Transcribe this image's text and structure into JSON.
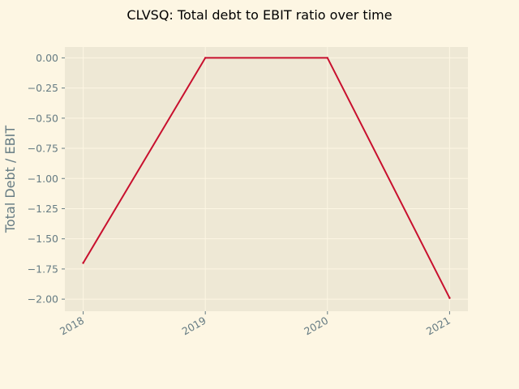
{
  "chart_data": {
    "type": "line",
    "title": "CLVSQ: Total debt to EBIT ratio over time",
    "xlabel": "",
    "ylabel": "Total Debt / EBIT",
    "x": [
      "2018",
      "2019",
      "2020",
      "2021"
    ],
    "xlim": [
      2017.85,
      2021.15
    ],
    "series": [
      {
        "values": [
          -1.7,
          0.0,
          0.0,
          -1.99
        ],
        "color": "#c8102e"
      }
    ],
    "ylim": [
      -2.1,
      0.09
    ],
    "yticks": [
      0.0,
      -0.25,
      -0.5,
      -0.75,
      -1.0,
      -1.25,
      -1.5,
      -1.75,
      -2.0
    ],
    "ytick_labels": [
      "0.00",
      "−0.25",
      "−0.50",
      "−0.75",
      "−1.00",
      "−1.25",
      "−1.50",
      "−1.75",
      "−2.00"
    ],
    "xtick_labels": [
      "2018",
      "2019",
      "2020",
      "2021"
    ],
    "grid": true,
    "colors": {
      "figure_background": "#fdf6e3",
      "axes_background": "#eee8d5",
      "grid": "#fdf6e3",
      "text": "#657b83",
      "line": "#c8102e"
    }
  }
}
